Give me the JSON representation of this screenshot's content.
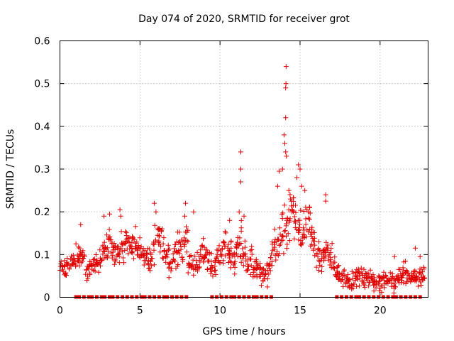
{
  "chart_data": {
    "type": "scatter",
    "title": "Day 074 of 2020, SRMTID for receiver grot",
    "xlabel": "GPS time / hours",
    "ylabel": "SRMTID / TECUs",
    "xlim": [
      0,
      23
    ],
    "ylim": [
      0,
      0.6
    ],
    "xticks": [
      0,
      5,
      10,
      15,
      20
    ],
    "yticks": [
      0,
      0.1,
      0.2,
      0.3,
      0.4,
      0.5,
      0.6
    ],
    "ytick_labels": [
      "0",
      "0.1",
      "0.2",
      "0.3",
      "0.4",
      "0.5",
      "0.6"
    ],
    "grid": true,
    "marker": "+",
    "color": "#e00000",
    "series": [
      {
        "name": "SRMTID",
        "x": [
          0.0,
          0.2,
          0.4,
          0.6,
          0.8,
          1.0,
          1.2,
          1.4,
          1.6,
          1.8,
          2.0,
          2.2,
          2.4,
          2.6,
          2.8,
          3.0,
          3.2,
          3.4,
          3.6,
          3.8,
          4.0,
          4.2,
          4.4,
          4.6,
          4.8,
          5.0,
          5.2,
          5.4,
          5.6,
          5.8,
          6.0,
          6.2,
          6.4,
          6.6,
          6.8,
          7.0,
          7.2,
          7.4,
          7.6,
          7.8,
          8.0,
          8.2,
          8.4,
          8.6,
          8.8,
          9.0,
          9.2,
          9.4,
          9.6,
          9.8,
          10.0,
          10.2,
          10.4,
          10.6,
          10.8,
          11.0,
          11.2,
          11.4,
          11.6,
          11.8,
          12.0,
          12.2,
          12.4,
          12.6,
          12.8,
          13.0,
          13.2,
          13.4,
          13.6,
          13.8,
          14.0,
          14.2,
          14.4,
          14.6,
          14.8,
          15.0,
          15.2,
          15.4,
          15.6,
          15.8,
          16.0,
          16.2,
          16.4,
          16.6,
          16.8,
          17.0,
          17.2,
          17.4,
          17.6,
          17.8,
          18.0,
          18.2,
          18.4,
          18.6,
          18.8,
          19.0,
          19.2,
          19.4,
          19.6,
          19.8,
          20.0,
          20.2,
          20.4,
          20.6,
          20.8,
          21.0,
          21.2,
          21.4,
          21.6,
          21.8,
          22.0,
          22.2,
          22.4,
          22.6
        ],
        "y_center": [
          0.07,
          0.065,
          0.08,
          0.085,
          0.09,
          0.095,
          0.1,
          0.095,
          0.06,
          0.07,
          0.075,
          0.08,
          0.085,
          0.1,
          0.12,
          0.13,
          0.11,
          0.1,
          0.1,
          0.12,
          0.13,
          0.12,
          0.125,
          0.13,
          0.11,
          0.1,
          0.095,
          0.09,
          0.085,
          0.12,
          0.15,
          0.13,
          0.1,
          0.09,
          0.08,
          0.095,
          0.12,
          0.13,
          0.11,
          0.14,
          0.08,
          0.075,
          0.08,
          0.09,
          0.1,
          0.1,
          0.085,
          0.075,
          0.08,
          0.09,
          0.1,
          0.12,
          0.11,
          0.1,
          0.09,
          0.12,
          0.13,
          0.1,
          0.08,
          0.085,
          0.07,
          0.065,
          0.05,
          0.05,
          0.06,
          0.08,
          0.1,
          0.12,
          0.15,
          0.16,
          0.17,
          0.2,
          0.22,
          0.17,
          0.15,
          0.14,
          0.16,
          0.17,
          0.14,
          0.12,
          0.1,
          0.09,
          0.1,
          0.11,
          0.09,
          0.07,
          0.06,
          0.05,
          0.045,
          0.04,
          0.035,
          0.04,
          0.05,
          0.05,
          0.045,
          0.04,
          0.045,
          0.04,
          0.035,
          0.03,
          0.035,
          0.04,
          0.035,
          0.035,
          0.04,
          0.05,
          0.055,
          0.06,
          0.05,
          0.045,
          0.05,
          0.05,
          0.05,
          0.05
        ],
        "y_spread": [
          0.02,
          0.02,
          0.02,
          0.02,
          0.02,
          0.02,
          0.025,
          0.02,
          0.02,
          0.02,
          0.02,
          0.02,
          0.025,
          0.03,
          0.03,
          0.03,
          0.03,
          0.03,
          0.03,
          0.03,
          0.035,
          0.03,
          0.03,
          0.035,
          0.03,
          0.03,
          0.03,
          0.03,
          0.03,
          0.04,
          0.04,
          0.035,
          0.03,
          0.03,
          0.03,
          0.03,
          0.04,
          0.04,
          0.035,
          0.04,
          0.03,
          0.03,
          0.03,
          0.03,
          0.03,
          0.03,
          0.03,
          0.03,
          0.03,
          0.03,
          0.03,
          0.035,
          0.035,
          0.03,
          0.03,
          0.035,
          0.04,
          0.035,
          0.03,
          0.03,
          0.025,
          0.025,
          0.025,
          0.025,
          0.025,
          0.03,
          0.035,
          0.04,
          0.045,
          0.05,
          0.06,
          0.07,
          0.06,
          0.05,
          0.05,
          0.05,
          0.05,
          0.05,
          0.045,
          0.04,
          0.035,
          0.03,
          0.03,
          0.035,
          0.03,
          0.025,
          0.02,
          0.02,
          0.02,
          0.02,
          0.02,
          0.02,
          0.02,
          0.02,
          0.02,
          0.02,
          0.02,
          0.02,
          0.02,
          0.02,
          0.02,
          0.02,
          0.02,
          0.02,
          0.02,
          0.02,
          0.02,
          0.025,
          0.02,
          0.02,
          0.02,
          0.02,
          0.02,
          0.02
        ],
        "outliers": [
          {
            "x": 1.0,
            "y": 0.125
          },
          {
            "x": 1.3,
            "y": 0.17
          },
          {
            "x": 2.75,
            "y": 0.19
          },
          {
            "x": 3.1,
            "y": 0.195
          },
          {
            "x": 3.75,
            "y": 0.205
          },
          {
            "x": 3.8,
            "y": 0.19
          },
          {
            "x": 5.9,
            "y": 0.22
          },
          {
            "x": 6.0,
            "y": 0.2
          },
          {
            "x": 7.85,
            "y": 0.22
          },
          {
            "x": 7.8,
            "y": 0.19
          },
          {
            "x": 8.35,
            "y": 0.2
          },
          {
            "x": 10.6,
            "y": 0.18
          },
          {
            "x": 11.3,
            "y": 0.34
          },
          {
            "x": 11.3,
            "y": 0.3
          },
          {
            "x": 11.3,
            "y": 0.27
          },
          {
            "x": 11.2,
            "y": 0.2
          },
          {
            "x": 11.5,
            "y": 0.19
          },
          {
            "x": 13.7,
            "y": 0.295
          },
          {
            "x": 13.9,
            "y": 0.3
          },
          {
            "x": 14.0,
            "y": 0.38
          },
          {
            "x": 14.05,
            "y": 0.36
          },
          {
            "x": 14.1,
            "y": 0.34
          },
          {
            "x": 14.15,
            "y": 0.33
          },
          {
            "x": 14.1,
            "y": 0.42
          },
          {
            "x": 14.1,
            "y": 0.49
          },
          {
            "x": 14.12,
            "y": 0.5
          },
          {
            "x": 14.13,
            "y": 0.54
          },
          {
            "x": 14.3,
            "y": 0.25
          },
          {
            "x": 14.4,
            "y": 0.23
          },
          {
            "x": 14.9,
            "y": 0.31
          },
          {
            "x": 15.0,
            "y": 0.3
          },
          {
            "x": 14.8,
            "y": 0.28
          },
          {
            "x": 15.3,
            "y": 0.25
          },
          {
            "x": 15.1,
            "y": 0.26
          },
          {
            "x": 16.6,
            "y": 0.24
          },
          {
            "x": 16.6,
            "y": 0.225
          },
          {
            "x": 13.6,
            "y": 0.26
          },
          {
            "x": 14.5,
            "y": 0.2
          },
          {
            "x": 15.6,
            "y": 0.21
          },
          {
            "x": 22.2,
            "y": 0.115
          },
          {
            "x": 20.9,
            "y": 0.095
          },
          {
            "x": 22.5,
            "y": 0.095
          }
        ],
        "zero_points_x": [
          1.0,
          1.2,
          1.5,
          1.8,
          2.0,
          2.3,
          2.6,
          2.8,
          3.1,
          3.3,
          3.6,
          3.9,
          4.2,
          4.5,
          4.8,
          5.1,
          5.3,
          5.6,
          5.9,
          6.2,
          6.5,
          6.7,
          7.0,
          7.3,
          7.6,
          7.9,
          9.5,
          9.8,
          10.1,
          10.4,
          10.7,
          10.9,
          11.2,
          11.5,
          11.8,
          12.1,
          12.3,
          12.6,
          12.9,
          13.2,
          17.3,
          17.6,
          17.9,
          18.2,
          18.5,
          18.7,
          19.0,
          19.3,
          19.6,
          19.9,
          20.2,
          20.5,
          20.8,
          21.0,
          21.3,
          21.6,
          21.9,
          22.2,
          22.5
        ]
      }
    ]
  }
}
